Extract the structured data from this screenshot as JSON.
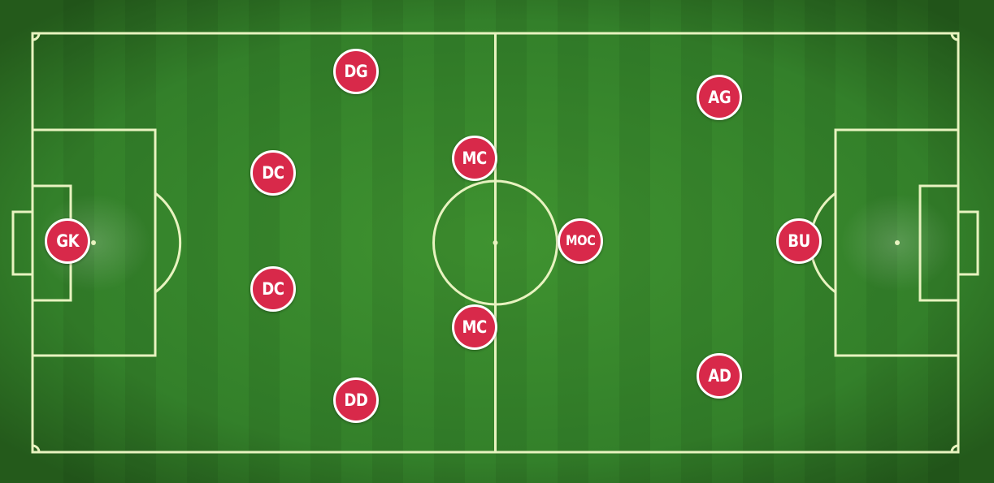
{
  "pitch": {
    "grass_color": "#3a8a2c",
    "stripe_color": "#347f27",
    "line_color": "#e8f3c0"
  },
  "token_style": {
    "fill_color": "#d8294a",
    "border_color": "#ffffff",
    "text_color": "#ffffff"
  },
  "players": [
    {
      "id": "gk",
      "label": "GK"
    },
    {
      "id": "dg",
      "label": "DG"
    },
    {
      "id": "dc1",
      "label": "DC"
    },
    {
      "id": "dc2",
      "label": "DC"
    },
    {
      "id": "dd",
      "label": "DD"
    },
    {
      "id": "mc1",
      "label": "MC"
    },
    {
      "id": "mc2",
      "label": "MC"
    },
    {
      "id": "moc",
      "label": "MOC"
    },
    {
      "id": "ag",
      "label": "AG"
    },
    {
      "id": "ad",
      "label": "AD"
    },
    {
      "id": "bu",
      "label": "BU"
    }
  ]
}
